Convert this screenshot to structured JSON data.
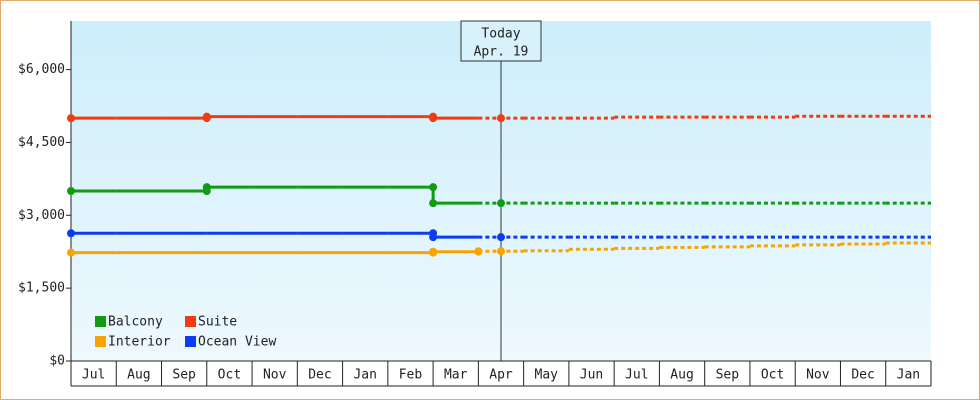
{
  "chart_data": {
    "type": "step-line",
    "categories": [
      "Jul",
      "Aug",
      "Sep",
      "Oct",
      "Nov",
      "Dec",
      "Jan",
      "Feb",
      "Mar",
      "Apr",
      "May",
      "Jun",
      "Jul",
      "Aug",
      "Sep",
      "Oct",
      "Nov",
      "Dec",
      "Jan"
    ],
    "series": [
      {
        "name": "Balcony",
        "color": "#139a13",
        "values": [
          3500,
          3500,
          3500,
          3580,
          3580,
          3580,
          3580,
          3580,
          3250,
          3250,
          3250,
          3250,
          3250,
          3250,
          3250,
          3250,
          3250,
          3250,
          3250
        ]
      },
      {
        "name": "Suite",
        "color": "#f03c10",
        "values": [
          5000,
          5000,
          5000,
          5030,
          5030,
          5030,
          5030,
          5030,
          5000,
          5000,
          5000,
          5000,
          5020,
          5020,
          5020,
          5020,
          5040,
          5040,
          5040
        ]
      },
      {
        "name": "Interior",
        "color": "#f8a400",
        "values": [
          2230,
          2230,
          2230,
          2230,
          2230,
          2230,
          2230,
          2230,
          2250,
          2260,
          2270,
          2300,
          2320,
          2340,
          2350,
          2370,
          2390,
          2410,
          2430
        ]
      },
      {
        "name": "Ocean View",
        "color": "#0c3cf0",
        "values": [
          2630,
          2630,
          2630,
          2630,
          2630,
          2630,
          2630,
          2630,
          2550,
          2550,
          2550,
          2550,
          2550,
          2550,
          2550,
          2550,
          2550,
          2550,
          2550
        ]
      }
    ],
    "ylim": [
      0,
      7000
    ],
    "yticks": [
      {
        "value": 0,
        "label": "$0"
      },
      {
        "value": 1500,
        "label": "$1,500"
      },
      {
        "value": 3000,
        "label": "$3,000"
      },
      {
        "value": 4500,
        "label": "$4,500"
      },
      {
        "value": 6000,
        "label": "$6,000"
      }
    ],
    "today": {
      "title": "Today",
      "date": "Apr. 19"
    },
    "projected_from": "Apr",
    "legend": "bottom-left"
  }
}
